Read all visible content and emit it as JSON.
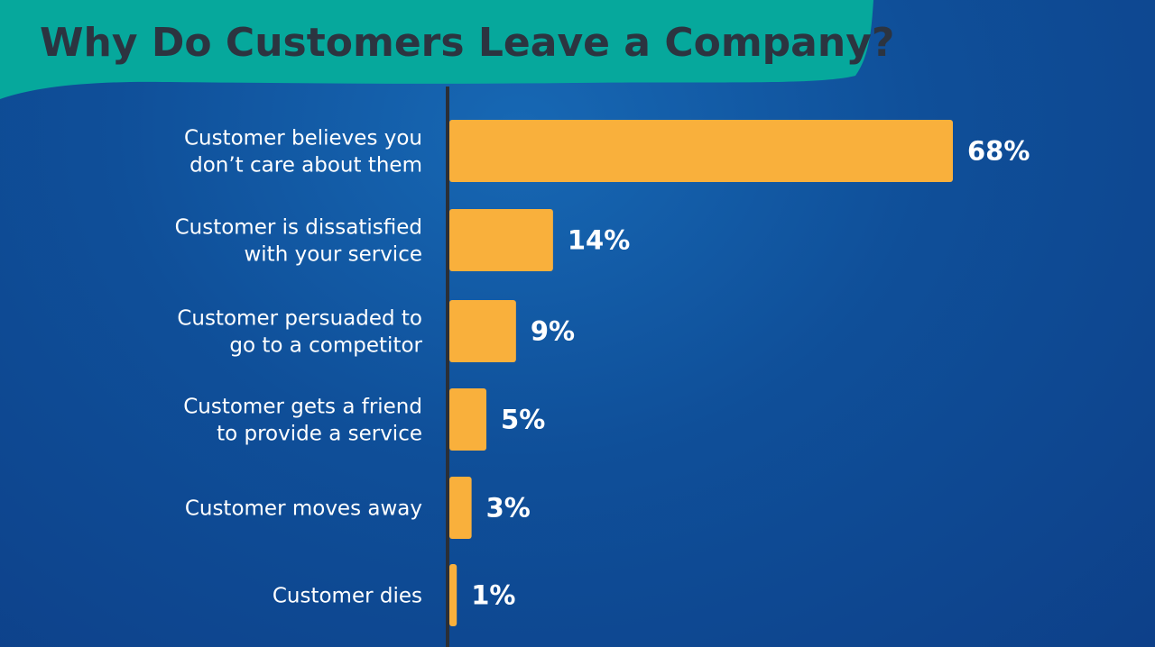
{
  "chart_data": {
    "type": "bar",
    "orientation": "horizontal",
    "title": "Why Do Customers Leave a Company?",
    "categories": [
      [
        "Customer believes you",
        "don’t care about them"
      ],
      [
        "Customer is dissatisfied",
        "with your service"
      ],
      [
        "Customer persuaded to",
        "go to a competitor"
      ],
      [
        "Customer gets a friend",
        "to provide a service"
      ],
      [
        "Customer moves away"
      ],
      [
        "Customer dies"
      ]
    ],
    "values": [
      68,
      14,
      9,
      5,
      3,
      1
    ],
    "value_labels": [
      "68%",
      "14%",
      "9%",
      "5%",
      "3%",
      "1%"
    ],
    "unit": "%",
    "xlim": [
      0,
      68
    ],
    "grid": false,
    "legend": "none",
    "colors": {
      "bar": "#f9b03c",
      "banner": "#06a89c",
      "axis": "#2b2f36",
      "title_text": "#2c3440",
      "label_text": "#ffffff"
    }
  }
}
